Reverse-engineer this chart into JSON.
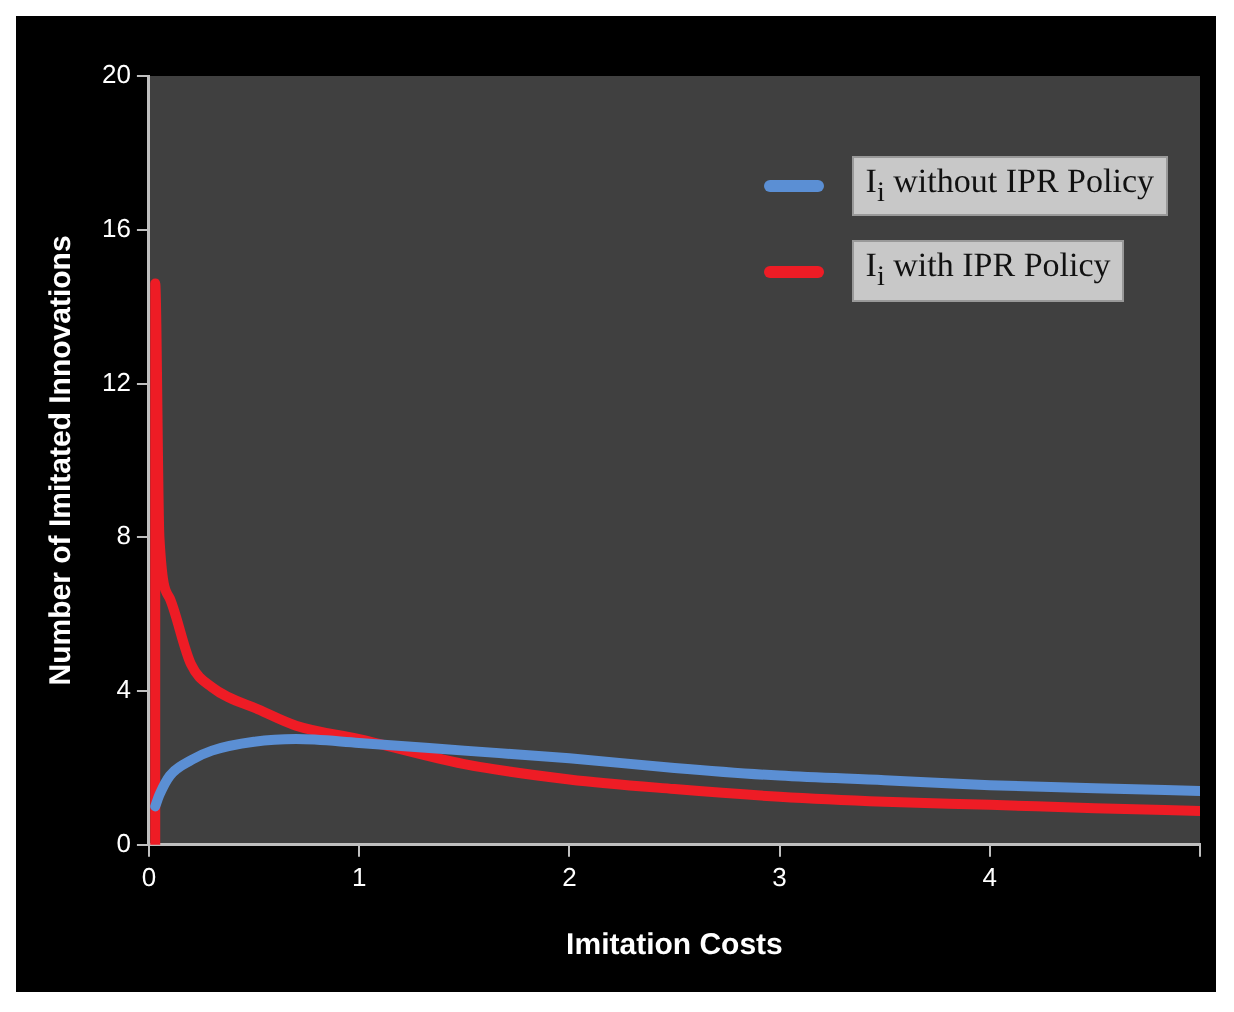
{
  "chart_data": {
    "type": "line",
    "xlabel": "Imitation Costs",
    "ylabel": "Number of Imitated Innovations",
    "xlim": [
      0,
      5
    ],
    "xticks": [
      0,
      1,
      2,
      3,
      4,
      {
        "value": 5,
        "label": null
      }
    ],
    "ylim": [
      0,
      20
    ],
    "yticks": [
      0,
      4,
      8,
      12,
      16,
      20
    ],
    "grid": false,
    "legend": "top right",
    "marker": "none",
    "line_style": "solid",
    "series": [
      {
        "name": "I$_{i}$ without IPR Policy",
        "color": "#5b8fd4",
        "x": [
          0.03,
          0.05,
          0.1,
          0.2,
          0.3,
          0.5,
          0.7,
          1,
          1.5,
          2,
          2.5,
          3,
          3.5,
          4,
          4.5,
          5
        ],
        "values": [
          1.0,
          1.3,
          1.8,
          2.2,
          2.45,
          2.68,
          2.75,
          2.65,
          2.45,
          2.25,
          2.0,
          1.8,
          1.68,
          1.55,
          1.47,
          1.4
        ]
      },
      {
        "name": "I$_{i}$ with IPR Policy",
        "color": "#ee1c25",
        "x": [
          0.03,
          0.03,
          0.05,
          0.1,
          0.2,
          0.3,
          0.53,
          0.7,
          1,
          1.5,
          2,
          2.5,
          3,
          3.5,
          4,
          4.5,
          5
        ],
        "values": [
          0,
          14.6,
          8,
          6.4,
          4.7,
          4.1,
          3.5,
          3.1,
          2.75,
          2.1,
          1.7,
          1.45,
          1.25,
          1.12,
          1.04,
          0.95,
          0.88
        ]
      }
    ]
  }
}
